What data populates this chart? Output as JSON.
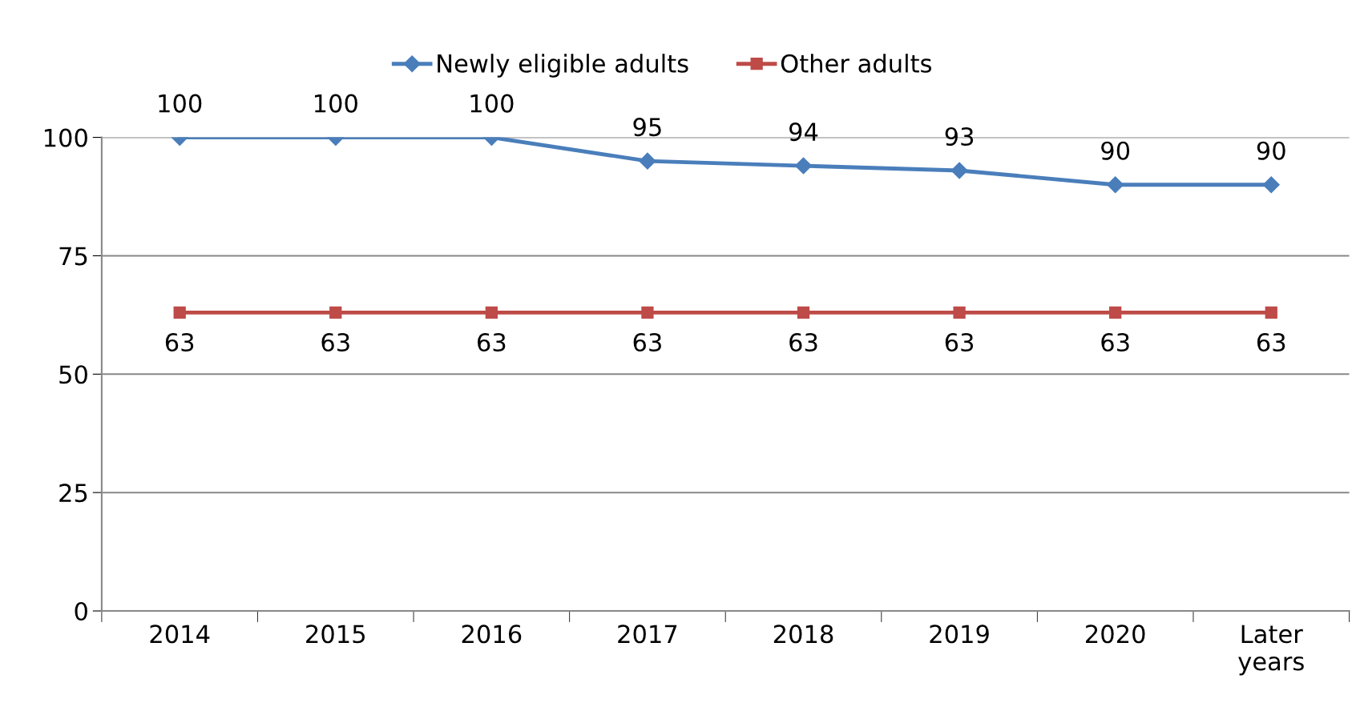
{
  "chart_data": {
    "type": "line",
    "categories": [
      "2014",
      "2015",
      "2016",
      "2017",
      "2018",
      "2019",
      "2020",
      "Later\nyears"
    ],
    "series": [
      {
        "name": "Newly eligible adults",
        "color": "#4a7ebb",
        "marker": "diamond",
        "values": [
          100,
          100,
          100,
          95,
          94,
          93,
          90,
          90
        ]
      },
      {
        "name": "Other adults",
        "color": "#be4b48",
        "marker": "square",
        "values": [
          63,
          63,
          63,
          63,
          63,
          63,
          63,
          63
        ]
      }
    ],
    "ylim": [
      0,
      100
    ],
    "yticks": [
      0,
      25,
      50,
      75,
      100
    ],
    "grid": "y",
    "legend": "top",
    "data_labels": true
  }
}
